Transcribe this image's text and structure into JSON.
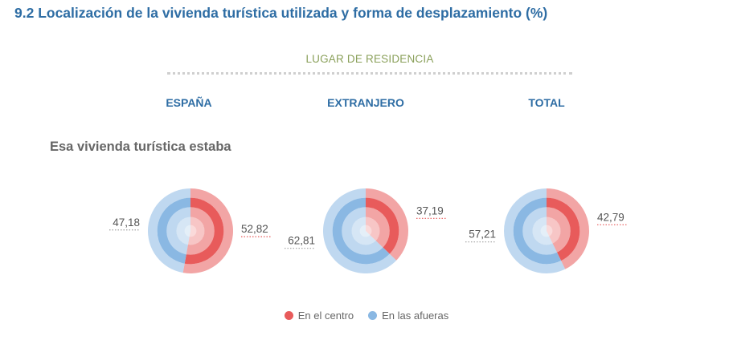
{
  "title": "9.2  Localización de la vivienda turística utilizada y forma de desplazamiento (%)",
  "group_label": "LUGAR DE RESIDENCIA",
  "columns": [
    "ESPAÑA",
    "EXTRANJERO",
    "TOTAL"
  ],
  "section_title": "Esa vivienda turística estaba",
  "colors": {
    "centro": "#e85b5b",
    "afueras": "#8ab8e3",
    "title": "#2e6da4",
    "group": "#8aa05a"
  },
  "legend": [
    {
      "label": "En el centro",
      "color": "#e85b5b"
    },
    {
      "label": "En las afueras",
      "color": "#8ab8e3"
    }
  ],
  "chart_data": [
    {
      "type": "pie",
      "category": "ESPAÑA",
      "slices": [
        {
          "name": "En el centro",
          "value": 52.82,
          "label": "52,82"
        },
        {
          "name": "En las afueras",
          "value": 47.18,
          "label": "47,18"
        }
      ]
    },
    {
      "type": "pie",
      "category": "EXTRANJERO",
      "slices": [
        {
          "name": "En el centro",
          "value": 37.19,
          "label": "37,19"
        },
        {
          "name": "En las afueras",
          "value": 62.81,
          "label": "62,81"
        }
      ]
    },
    {
      "type": "pie",
      "category": "TOTAL",
      "slices": [
        {
          "name": "En el centro",
          "value": 42.79,
          "label": "42,79"
        },
        {
          "name": "En las afueras",
          "value": 57.21,
          "label": "57,21"
        }
      ]
    }
  ]
}
